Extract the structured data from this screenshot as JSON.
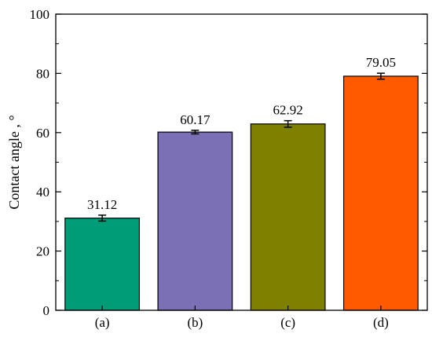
{
  "chart_data": {
    "type": "bar",
    "categories": [
      "(a)",
      "(b)",
      "(c)",
      "(d)"
    ],
    "values": [
      31.12,
      60.17,
      62.92,
      79.05
    ],
    "errors": [
      1.0,
      0.6,
      1.1,
      1.0
    ],
    "value_labels": [
      "31.12",
      "60.17",
      "62.92",
      "79.05"
    ],
    "colors": [
      "#009b77",
      "#7b6fb5",
      "#7f7f00",
      "#ff5a00"
    ],
    "title": "",
    "xlabel": "",
    "ylabel": "Contact angle , °",
    "ylim": [
      0,
      100
    ],
    "yticks": [
      0,
      20,
      40,
      60,
      80,
      100
    ],
    "ytick_labels": [
      "0",
      "20",
      "40",
      "60",
      "80",
      "100"
    ],
    "grid": false,
    "legend": "none"
  }
}
